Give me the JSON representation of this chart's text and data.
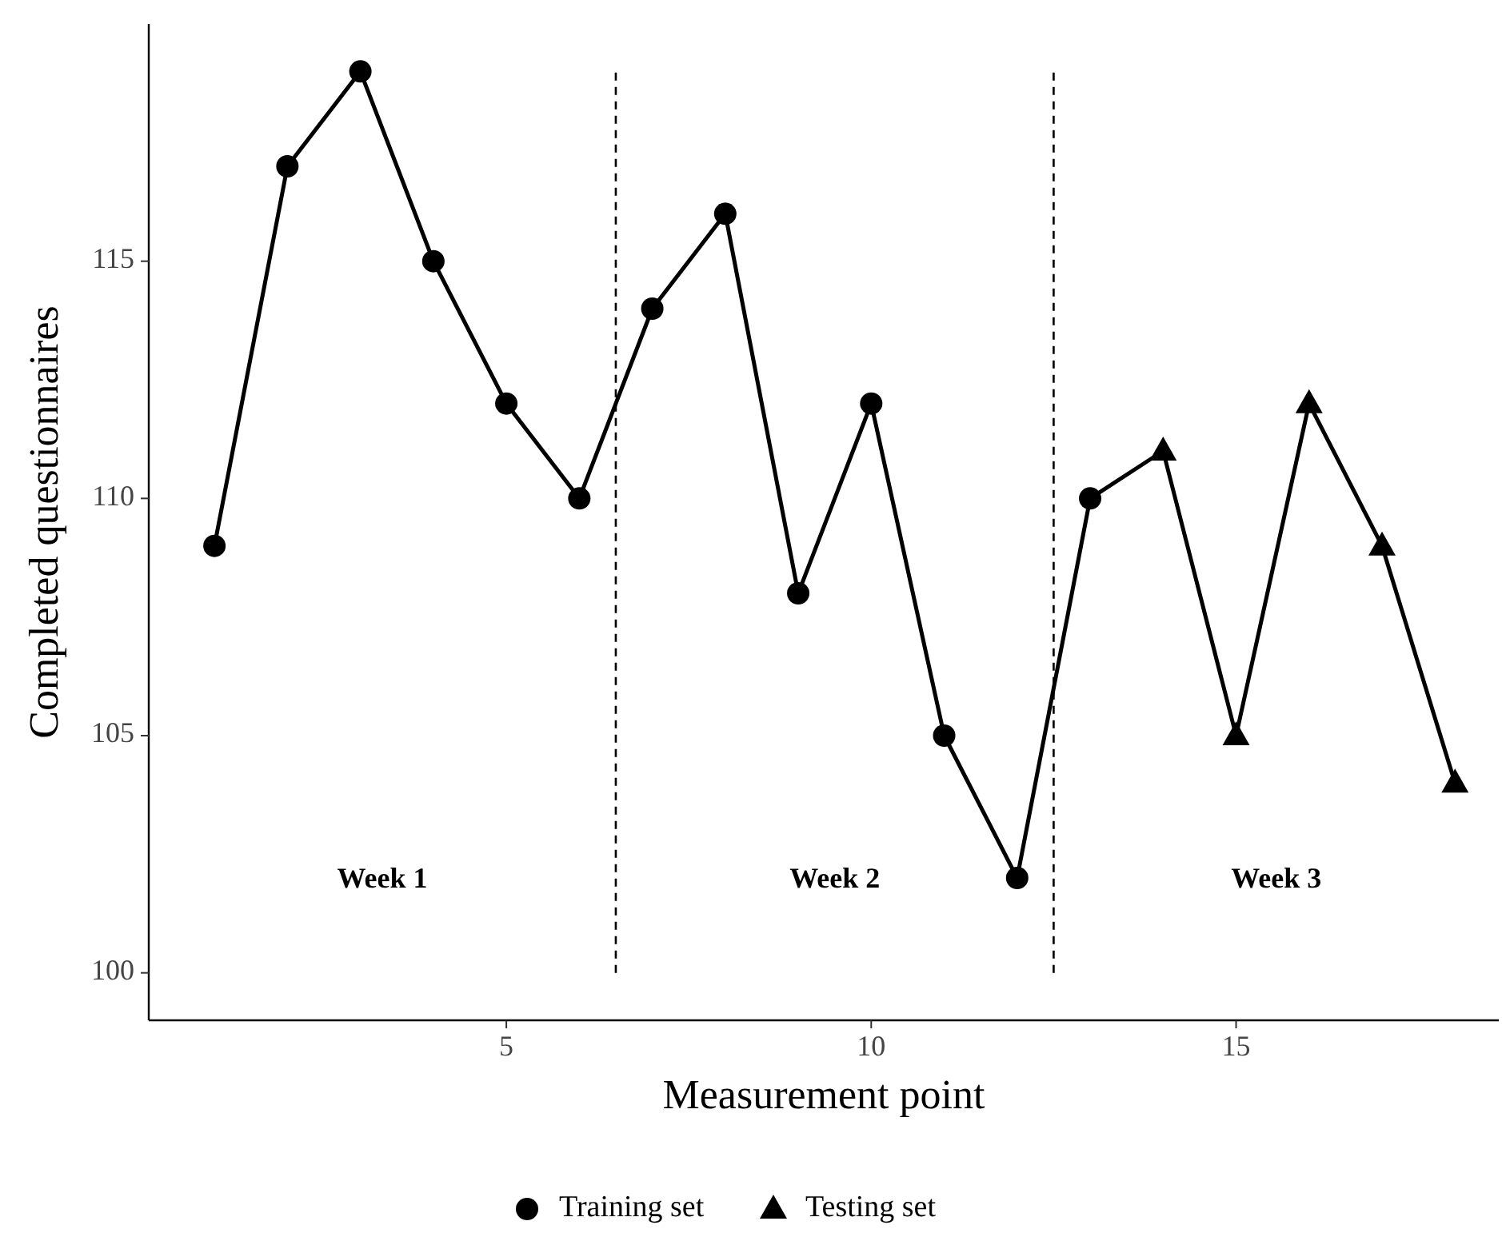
{
  "chart_data": {
    "type": "line",
    "xlabel": "Measurement point",
    "ylabel": "Completed questionnaires",
    "x": [
      1,
      2,
      3,
      4,
      5,
      6,
      7,
      8,
      9,
      10,
      11,
      12,
      13,
      14,
      15,
      16,
      17,
      18
    ],
    "series": [
      {
        "color": "#000000",
        "marker": "none",
        "line_style": "solid",
        "values": [
          109,
          117,
          119,
          115,
          112,
          110,
          114,
          116,
          108,
          112,
          105,
          102,
          110,
          111,
          105,
          112,
          109,
          104
        ]
      },
      {
        "type": "scatter",
        "name": "Training set",
        "color": "#000000",
        "marker": "circle",
        "x": [
          1,
          2,
          3,
          4,
          5,
          6,
          7,
          8,
          9,
          10,
          11,
          12,
          13
        ],
        "values": [
          109,
          117,
          119,
          115,
          112,
          110,
          114,
          116,
          108,
          112,
          105,
          102,
          110
        ]
      },
      {
        "type": "scatter",
        "name": "Testing set",
        "color": "#000000",
        "marker": "triangle",
        "x": [
          14,
          15,
          16,
          17,
          18
        ],
        "values": [
          111,
          105,
          112,
          109,
          104
        ]
      }
    ],
    "xlim": [
      0.1,
      18.6
    ],
    "xticks": [
      5,
      10,
      15
    ],
    "ylim": [
      99,
      120
    ],
    "yticks": [
      100,
      105,
      110,
      115
    ],
    "ref_lines": [
      {
        "axis": "x",
        "value": 6.5,
        "line_style": "dashed",
        "color": "#000000"
      },
      {
        "axis": "x",
        "value": 12.5,
        "line_style": "dashed",
        "color": "#000000"
      }
    ],
    "annotations": [
      "Week 1",
      "Week 2",
      "Week 3"
    ],
    "grid": false,
    "legend": "bottom"
  }
}
